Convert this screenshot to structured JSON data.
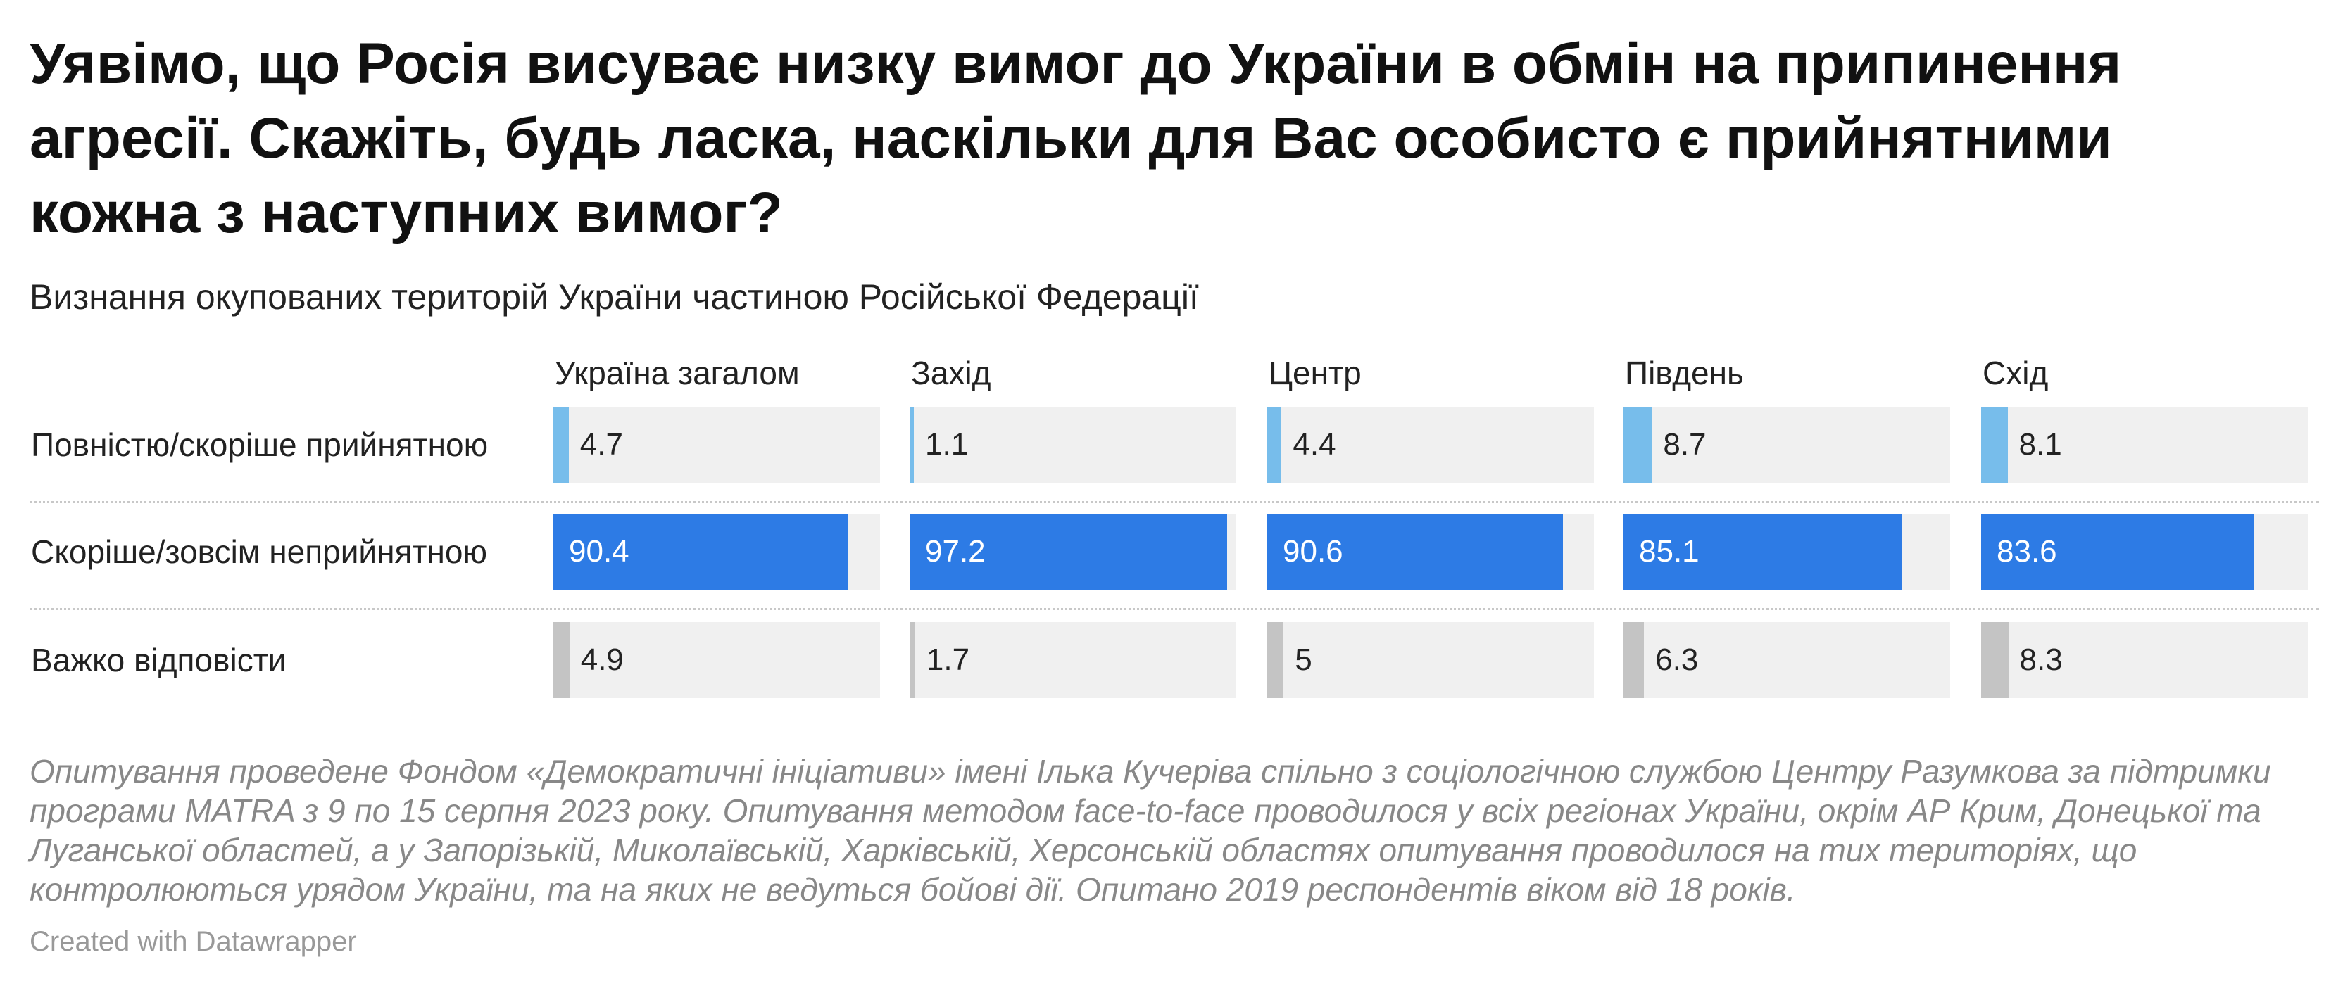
{
  "title": "Уявімо, що Росія висуває низку вимог до України в обмін на припинення агресії. Скажіть, будь ласка, наскільки для Вас особисто є прийнятними кожна з наступних вимог?",
  "subtitle": "Визнання окупованих територій України частиною Російської Федерації",
  "notes": "Опитування проведене Фондом «Демократичні ініціативи» імені Ілька Кучеріва спільно з соціологічною службою Центру Разумкова за підтримки програми MATRA з 9 по 15 серпня 2023 року. Опитування методом face-to-face проводилося у всіх регіонах України, окрім АР Крим, Донецької та Луганської областей, а у Запорізькій, Миколаївській, Харківській, Херсонській областях опитування проводилося на тих територіях, що контролюються урядом України, та на яких не ведуться бойові дії. Опитано 2019 респондентів віком від 18 років.",
  "credit": "Created with Datawrapper",
  "colors": {
    "accept": "#77bdeb",
    "reject": "#2d7be5",
    "hard": "#c4c4c4",
    "track": "#f0f0f0"
  },
  "chart_data": {
    "type": "bar",
    "layout": "small-multiples",
    "xlim": [
      0,
      100
    ],
    "panels": [
      "Україна загалом",
      "Захід",
      "Центр",
      "Південь",
      "Схід"
    ],
    "categories": [
      "Повністю/скоріше прийнятною",
      "Скоріше/зовсім неприйнятною",
      "Важко відповісти"
    ],
    "values": [
      [
        "4.7",
        "90.4",
        "4.9"
      ],
      [
        "1.1",
        "97.2",
        "1.7"
      ],
      [
        "4.4",
        "90.6",
        "5"
      ],
      [
        "8.7",
        "85.1",
        "6.3"
      ],
      [
        "8.1",
        "83.6",
        "8.3"
      ]
    ]
  }
}
